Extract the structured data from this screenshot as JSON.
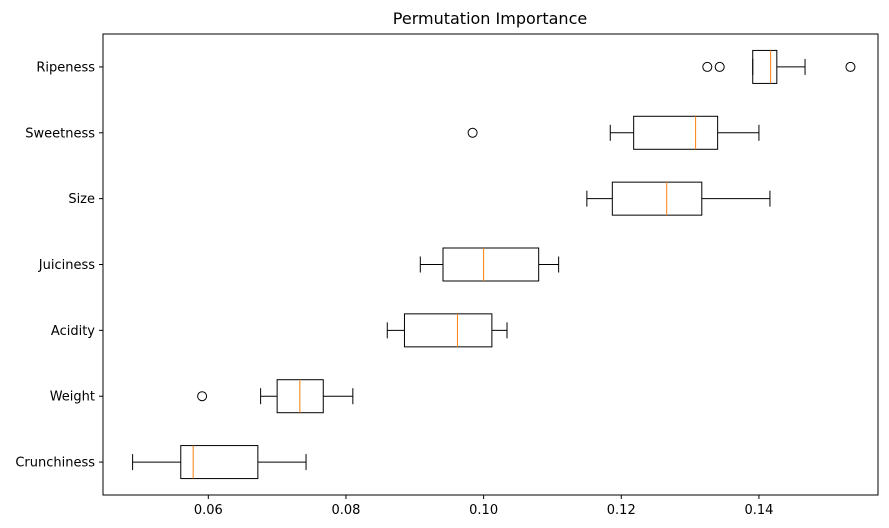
{
  "chart_data": {
    "type": "boxplot",
    "title": "Permutation Importance",
    "xlabel": "",
    "ylabel": "",
    "orientation": "horizontal",
    "xlim": [
      0.0447,
      0.1573
    ],
    "x_ticks": [
      0.06,
      0.08,
      0.1,
      0.12,
      0.14
    ],
    "x_tick_labels": [
      "0.06",
      "0.08",
      "0.10",
      "0.12",
      "0.14"
    ],
    "grid": false,
    "categories": [
      "Crunchiness",
      "Weight",
      "Acidity",
      "Juiciness",
      "Size",
      "Sweetness",
      "Ripeness"
    ],
    "boxes": [
      {
        "label": "Crunchiness",
        "whisker_low": 0.049,
        "q1": 0.056,
        "median": 0.0578,
        "q3": 0.0672,
        "whisker_high": 0.0742,
        "outliers": []
      },
      {
        "label": "Weight",
        "whisker_low": 0.0676,
        "q1": 0.07,
        "median": 0.0733,
        "q3": 0.0767,
        "whisker_high": 0.081,
        "outliers": [
          0.0591
        ]
      },
      {
        "label": "Acidity",
        "whisker_low": 0.086,
        "q1": 0.0885,
        "median": 0.0962,
        "q3": 0.1012,
        "whisker_high": 0.1034,
        "outliers": []
      },
      {
        "label": "Juiciness",
        "whisker_low": 0.0908,
        "q1": 0.0941,
        "median": 0.1,
        "q3": 0.108,
        "whisker_high": 0.1109,
        "outliers": []
      },
      {
        "label": "Size",
        "whisker_low": 0.115,
        "q1": 0.1187,
        "median": 0.1266,
        "q3": 0.1317,
        "whisker_high": 0.1416,
        "outliers": []
      },
      {
        "label": "Sweetness",
        "whisker_low": 0.1184,
        "q1": 0.1218,
        "median": 0.1308,
        "q3": 0.134,
        "whisker_high": 0.14,
        "outliers": [
          0.0984
        ]
      },
      {
        "label": "Ripeness",
        "whisker_low": 0.1391,
        "q1": 0.1391,
        "median": 0.1417,
        "q3": 0.1426,
        "whisker_high": 0.1467,
        "outliers": [
          0.1325,
          0.1343,
          0.1533
        ]
      }
    ],
    "colors": {
      "box": "#000000",
      "median": "#ff7f0e",
      "axes": "#000000",
      "background": "#ffffff"
    }
  }
}
